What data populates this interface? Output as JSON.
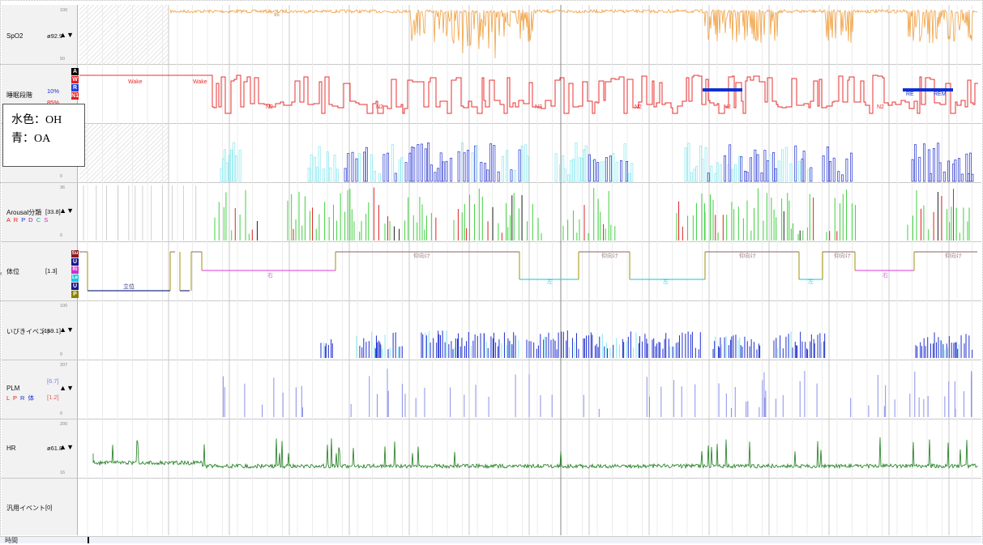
{
  "rows": {
    "spo2": {
      "name": "SpO2",
      "value": "ø92.9",
      "arrows": "▲▼",
      "scale_top": "100",
      "scale_bot": "50"
    },
    "sleep": {
      "name": "睡眠段階",
      "value": "10%",
      "value2": "85%",
      "code_boxes": [
        {
          "text": "A",
          "color": "#000000"
        },
        {
          "text": "W",
          "color": "#e02020"
        },
        {
          "text": "R",
          "color": "#2040e0"
        },
        {
          "text": "N1",
          "color": "#e02020"
        }
      ]
    },
    "apnea": {
      "scale_bot": "0"
    },
    "arousal": {
      "name": "Arousal分類",
      "value": "[33.8]",
      "arrows": "▲▼",
      "sub_letters": [
        "A",
        "R",
        "P",
        "D",
        "C",
        "S"
      ],
      "scale_top": "36",
      "scale_bot": "0"
    },
    "position": {
      "name": "体位",
      "value": "[1.3]",
      "code_boxes": [
        {
          "text": "Su",
          "color": "#8b1a1a"
        },
        {
          "text": "U",
          "color": "#1a1a8b"
        },
        {
          "text": "Ri",
          "color": "#d030d0"
        },
        {
          "text": "Le",
          "color": "#20c8e0"
        },
        {
          "text": "U",
          "color": "#1a1a8b"
        },
        {
          "text": "P",
          "color": "#8b8000"
        }
      ]
    },
    "snore": {
      "name": "いびきイベント",
      "value": "[169.1]",
      "arrows": "▲▼",
      "scale_top": "100",
      "scale_bot": "0"
    },
    "plm": {
      "name": "PLM",
      "sub_letters": [
        "L",
        "P",
        "R",
        "体"
      ],
      "value": "[6.7]",
      "value2": "[1.2]",
      "arrows": "▲▼",
      "scale_top": "207",
      "scale_bot": "0"
    },
    "hr": {
      "name": "HR",
      "value": "ø61.8",
      "arrows": "▲▼",
      "scale_top": "200",
      "scale_bot": "16"
    },
    "general": {
      "name": "汎用イベント",
      "value": "[0]"
    }
  },
  "chart_labels": {
    "spo2_line": "95",
    "sleep_stages": [
      "Wake",
      "Wake",
      "N2",
      "N2",
      "N2",
      "N2",
      "N2",
      "N2",
      "RE",
      "REM"
    ],
    "positions": [
      "立位",
      "右",
      "仰向け",
      "左",
      "左",
      "仰向け",
      "仰向け",
      "左",
      "仰向け",
      "右",
      "仰向け"
    ]
  },
  "legend": {
    "line1": "水色：OH",
    "line2": "青：OA"
  },
  "bottom": {
    "label": "時間"
  },
  "colors": {
    "spo2": "#f0a040",
    "sleep": "#e83030",
    "rem": "#1030d0",
    "oh": "#80e8f0",
    "oa": "#2030d0",
    "hr": "#1a7a1a",
    "arousal_green": "#40d040",
    "arousal_red": "#e02020",
    "arousal_black": "#222222",
    "pos_supine": "#a08080",
    "pos_right": "#e060e0",
    "pos_left": "#40d0e8",
    "pos_upright": "#203080"
  }
}
